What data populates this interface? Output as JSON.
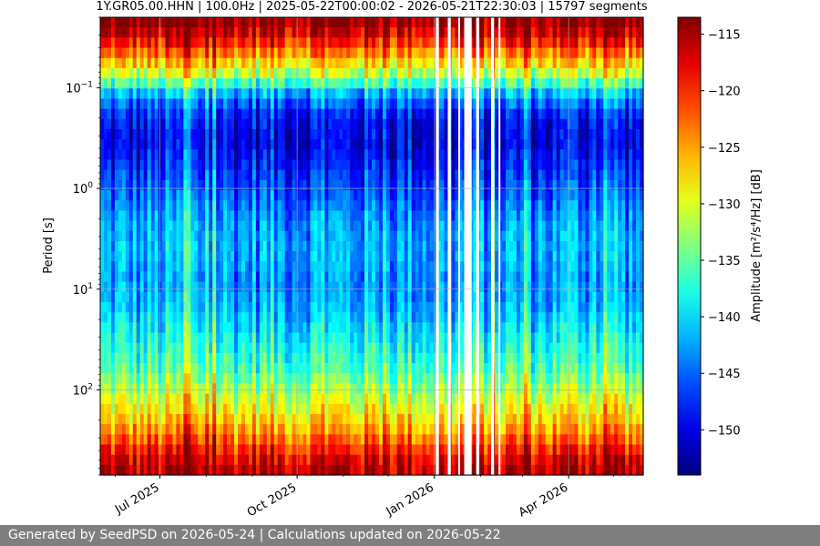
{
  "chart_data": {
    "type": "heatmap",
    "title": "1Y.GR05.00.HHN | 100.0Hz | 2025-05-22T00:00:02 - 2026-05-21T22:30:03 | 15797 segments",
    "ylabel": "Period [s]",
    "xlabel": "",
    "y_scale": "log",
    "y_inverted": true,
    "ylim": [
      0.02,
      700
    ],
    "y_ticks": [
      {
        "value": 0.1,
        "base": "10",
        "exp": "−1"
      },
      {
        "value": 1,
        "base": "10",
        "exp": "0"
      },
      {
        "value": 10,
        "base": "10",
        "exp": "1"
      },
      {
        "value": 100,
        "base": "10",
        "exp": "2"
      }
    ],
    "x_range": [
      "2025-05-22",
      "2026-05-21"
    ],
    "x_ticks": [
      {
        "date": "2025-07-01",
        "label": "Jul 2025"
      },
      {
        "date": "2025-10-01",
        "label": "Oct 2025"
      },
      {
        "date": "2026-01-01",
        "label": "Jan 2026"
      },
      {
        "date": "2026-04-01",
        "label": "Apr 2026"
      }
    ],
    "grid": true,
    "colormap": "jet",
    "colorbar": {
      "label": "Amplitude [m²/s⁴/Hz] [dB]",
      "range": [
        -154,
        -113.5
      ],
      "ticks": [
        -115,
        -120,
        -125,
        -130,
        -135,
        -140,
        -145,
        -150
      ]
    },
    "data_gaps": [
      [
        "2026-01-02",
        "2026-01-04"
      ],
      [
        "2026-01-10",
        "2026-01-12"
      ],
      [
        "2026-01-17",
        "2026-01-18"
      ],
      [
        "2026-01-21",
        "2026-01-26"
      ],
      [
        "2026-01-29",
        "2026-01-31"
      ],
      [
        "2026-02-08",
        "2026-02-10"
      ],
      [
        "2026-02-13",
        "2026-02-14"
      ]
    ],
    "amplitude_profile": [
      {
        "period": 0.022,
        "db": -114
      },
      {
        "period": 0.03,
        "db": -117
      },
      {
        "period": 0.05,
        "db": -125
      },
      {
        "period": 0.08,
        "db": -133
      },
      {
        "period": 0.12,
        "db": -143
      },
      {
        "period": 0.2,
        "db": -149
      },
      {
        "period": 0.35,
        "db": -150
      },
      {
        "period": 0.6,
        "db": -148
      },
      {
        "period": 1.0,
        "db": -146
      },
      {
        "period": 2.0,
        "db": -143
      },
      {
        "period": 4.0,
        "db": -142
      },
      {
        "period": 8.0,
        "db": -143
      },
      {
        "period": 15,
        "db": -142
      },
      {
        "period": 30,
        "db": -139
      },
      {
        "period": 60,
        "db": -136
      },
      {
        "period": 120,
        "db": -131
      },
      {
        "period": 200,
        "db": -127
      },
      {
        "period": 300,
        "db": -123
      },
      {
        "period": 450,
        "db": -118
      },
      {
        "period": 700,
        "db": -115
      }
    ]
  },
  "footer": {
    "text": "Generated by SeedPSD on 2026-05-24 | Calculations updated on 2026-05-22"
  }
}
